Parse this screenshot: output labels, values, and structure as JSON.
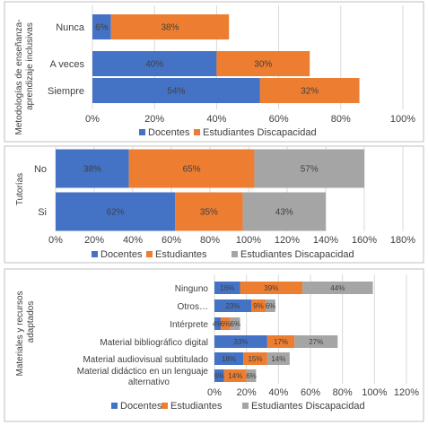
{
  "colors": {
    "docentes": "#4472C4",
    "estudiantes": "#ED7D31",
    "discapacidad": "#A5A5A5",
    "grid": "#D9D9D9",
    "text": "#404040",
    "bar_text": "#404040",
    "panel_border": "#BFBFBF"
  },
  "chart_data": [
    {
      "type": "bar",
      "orientation": "horizontal",
      "stacked": true,
      "ylabel": "Metodologías de enseñanza-aprendizaje inclusivas",
      "categories": [
        "Nunca",
        "A veces",
        "Siempre"
      ],
      "series": [
        {
          "name": "Docentes",
          "color_key": "docentes",
          "values": [
            6,
            40,
            54
          ],
          "labels": [
            "6%",
            "40%",
            "54%"
          ]
        },
        {
          "name": "Estudiantes Discapacidad",
          "color_key": "estudiantes",
          "values": [
            38,
            30,
            32
          ],
          "labels": [
            "38%",
            "30%",
            "32%"
          ]
        }
      ],
      "xlim": [
        0,
        100
      ],
      "xticks": [
        0,
        20,
        40,
        60,
        80,
        100
      ],
      "xtick_labels": [
        "0%",
        "20%",
        "40%",
        "60%",
        "80%",
        "100%"
      ],
      "grid": true,
      "legend": "bottom"
    },
    {
      "type": "bar",
      "orientation": "horizontal",
      "stacked": true,
      "ylabel": "Tutorías",
      "categories": [
        "No",
        "Si"
      ],
      "series": [
        {
          "name": "Docentes",
          "color_key": "docentes",
          "values": [
            38,
            62
          ],
          "labels": [
            "38%",
            "62%"
          ]
        },
        {
          "name": "Estudiantes",
          "color_key": "estudiantes",
          "values": [
            65,
            35
          ],
          "labels": [
            "65%",
            "35%"
          ]
        },
        {
          "name": "Estudiantes Discapacidad",
          "color_key": "discapacidad",
          "values": [
            57,
            43
          ],
          "labels": [
            "57%",
            "43%"
          ]
        }
      ],
      "xlim": [
        0,
        180
      ],
      "xticks": [
        0,
        20,
        40,
        60,
        80,
        100,
        120,
        140,
        160,
        180
      ],
      "xtick_labels": [
        "0%",
        "20%",
        "40%",
        "60%",
        "80%",
        "100%",
        "120%",
        "140%",
        "160%",
        "180%"
      ],
      "grid": true,
      "legend": "bottom"
    },
    {
      "type": "bar",
      "orientation": "horizontal",
      "stacked": true,
      "ylabel": "Materiales y recursos adaptados",
      "categories": [
        "Ninguno",
        "Otros…",
        "Intérprete",
        "Material bibliográfico digital",
        "Material audiovisual subtitulado",
        "Material didáctico en un lenguaje alternativo"
      ],
      "series": [
        {
          "name": "Docentes",
          "color_key": "docentes",
          "values": [
            16,
            23,
            4,
            33,
            18,
            6
          ],
          "labels": [
            "16%",
            "23%",
            "4%",
            "33%",
            "18%",
            "6%"
          ]
        },
        {
          "name": "Estudiantes",
          "color_key": "estudiantes",
          "values": [
            39,
            9,
            6,
            17,
            15,
            14
          ],
          "labels": [
            "39%",
            "9%",
            "6%",
            "17%",
            "15%",
            "14%"
          ]
        },
        {
          "name": "Estudiantes Discapacidad",
          "color_key": "discapacidad",
          "values": [
            44,
            6,
            6,
            27,
            14,
            6
          ],
          "labels": [
            "44%",
            "6%",
            "6%",
            "27%",
            "14%",
            "6%"
          ]
        }
      ],
      "xlim": [
        0,
        120
      ],
      "xticks": [
        0,
        20,
        40,
        60,
        80,
        100,
        120
      ],
      "xtick_labels": [
        "0%",
        "20%",
        "40%",
        "60%",
        "80%",
        "100%",
        "120%"
      ],
      "grid": true,
      "legend": "bottom"
    }
  ]
}
